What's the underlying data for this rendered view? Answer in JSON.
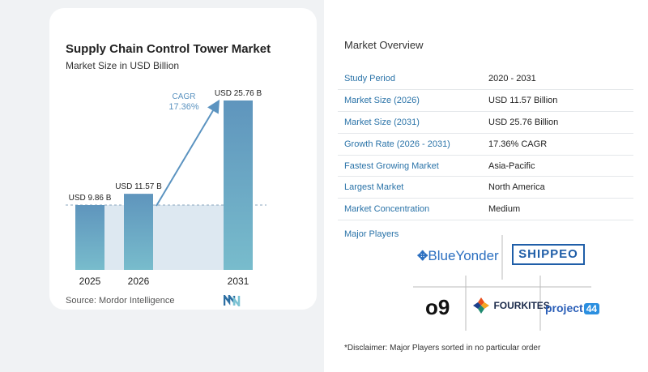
{
  "chart": {
    "title": "Supply Chain Control Tower Market",
    "subtitle": "Market Size in USD Billion",
    "source": "Source:  Mordor Intelligence",
    "cagr_label": "CAGR",
    "cagr_value": "17.36%"
  },
  "chart_data": {
    "type": "bar",
    "title": "Supply Chain Control Tower Market",
    "subtitle": "Market Size in USD Billion",
    "categories": [
      "2025",
      "2026",
      "2031"
    ],
    "values": [
      9.86,
      11.57,
      25.76
    ],
    "data_labels": [
      "USD 9.86 B",
      "USD 11.57 B",
      "USD 25.76 B"
    ],
    "ylim": [
      0,
      25.76
    ],
    "grid": false,
    "colors": {
      "bar_top": "#5f95bd",
      "bar_bottom": "#78bccc",
      "area": "#dde8f1",
      "arrow": "#5b93c0",
      "baseline": "#8aa6bd"
    }
  },
  "overview": {
    "title": "Market Overview",
    "rows": [
      {
        "label": "Study Period",
        "value": "2020 - 2031"
      },
      {
        "label": "Market Size (2026)",
        "value": "USD 11.57 Billion"
      },
      {
        "label": "Market Size (2031)",
        "value": "USD 25.76 Billion"
      },
      {
        "label": "Growth Rate (2026 - 2031)",
        "value": "17.36% CAGR"
      },
      {
        "label": "Fastest Growing Market",
        "value": "Asia-Pacific"
      },
      {
        "label": "Largest Market",
        "value": "North America"
      },
      {
        "label": "Market Concentration",
        "value": "Medium"
      }
    ]
  },
  "players": {
    "title": "Major Players",
    "logos": {
      "blueyonder": "BlueYonder",
      "shippeo": "SHIPPEO",
      "o9": "o9",
      "fourkites": "FOURKITES",
      "project44_a": "project",
      "project44_b": "44"
    }
  },
  "disclaimer": "*Disclaimer: Major Players sorted in no particular order",
  "icons": {
    "mordor_logo": "mordor-intelligence-logo-icon"
  }
}
